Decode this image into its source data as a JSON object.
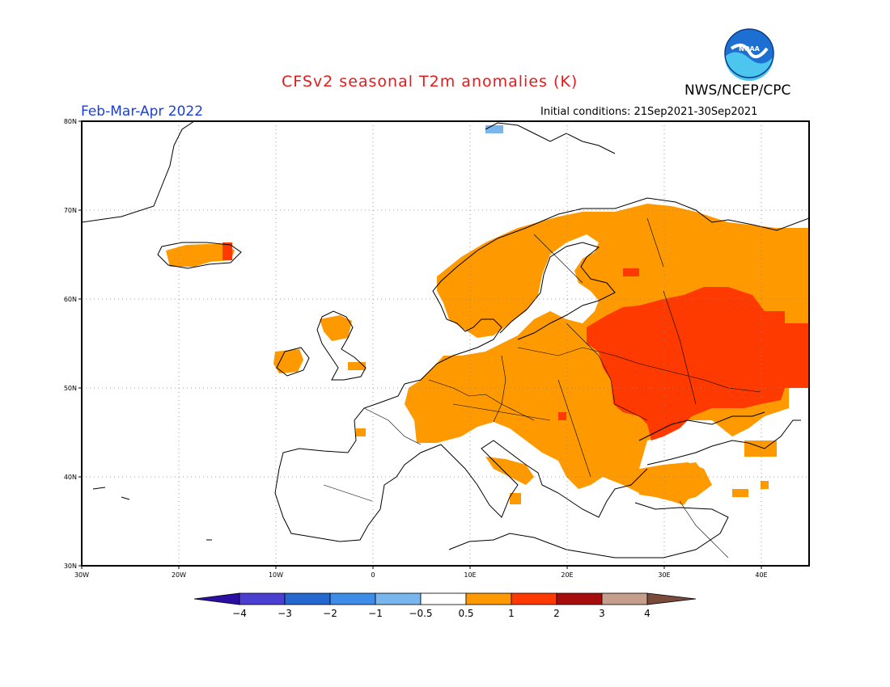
{
  "header": {
    "title": "CFSv2 seasonal T2m anomalies (K)",
    "agency": "NWS/NCEP/CPC",
    "period": "Feb-Mar-Apr 2022",
    "initial_conditions": "Initial conditions: 21Sep2021-30Sep2021",
    "logo_text": "NOAA"
  },
  "axes": {
    "lat_ticks": [
      "80N",
      "70N",
      "60N",
      "50N",
      "40N",
      "30N"
    ],
    "lon_ticks": [
      "30W",
      "20W",
      "10W",
      "0",
      "10E",
      "20E",
      "30E",
      "40E"
    ]
  },
  "colorbar": {
    "labels": [
      "−4",
      "−3",
      "−2",
      "−1",
      "−0.5",
      "0.5",
      "1",
      "2",
      "3",
      "4"
    ],
    "colors": [
      "#2a0fa2",
      "#4a3fd0",
      "#2468d0",
      "#3c8ce8",
      "#7ab6ee",
      "#ffffff",
      "#ff9900",
      "#ff3a00",
      "#a70d0d",
      "#c79e8c",
      "#7a4a3a"
    ]
  },
  "colors": {
    "title": "#e8191b",
    "period": "#1b3fd6",
    "anomaly_0_5_to_1": "#ff9900",
    "anomaly_1_to_2": "#ff3a00",
    "anomaly_negative": "#7ab6ee"
  }
}
